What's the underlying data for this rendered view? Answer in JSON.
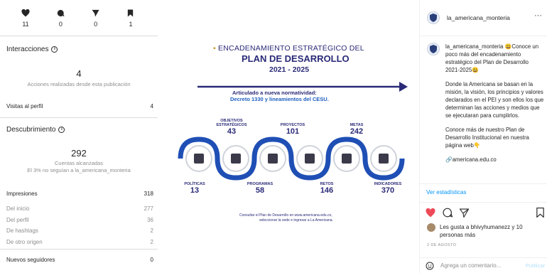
{
  "insights": {
    "stats": [
      {
        "icon": "heart-icon",
        "value": "11"
      },
      {
        "icon": "comment-icon",
        "value": "0"
      },
      {
        "icon": "share-icon",
        "value": "0"
      },
      {
        "icon": "bookmark-icon",
        "value": "1"
      }
    ],
    "interactions_title": "Interacciones",
    "interactions_count": "4",
    "interactions_desc": "Acciones realizadas desde esta publicación",
    "profile_visits_label": "Visitas al perfil",
    "profile_visits_value": "4",
    "discovery_title": "Descubrimiento",
    "reach_count": "292",
    "reach_label": "Cuentas alcanzadas",
    "reach_note": "El 3% no seguían a la_americana_monteria",
    "impressions_label": "Impresiones",
    "impressions_value": "318",
    "from_home_label": "Del inicio",
    "from_home_value": "277",
    "from_profile_label": "Del perfil",
    "from_profile_value": "36",
    "from_hashtags_label": "De hashtags",
    "from_hashtags_value": "2",
    "from_other_label": "De otro origen",
    "from_other_value": "2",
    "new_followers_label": "Nuevos seguidores",
    "new_followers_value": "0"
  },
  "image": {
    "title_line1": "ENCADENAMIENTO ESTRATÉGICO DEL",
    "title_line2": "PLAN DE DESARROLLO",
    "title_line3": "2021 - 2025",
    "subtitle_line1": "Articulado a nueva normatividad:",
    "subtitle_line2": "Decreto 1330 y lineamientos del CESU.",
    "top_items": [
      {
        "label": "OBJETIVOS ESTRATÉGICOS",
        "value": "43"
      },
      {
        "label": "PROYECTOS",
        "value": "101"
      },
      {
        "label": "METAS",
        "value": "242"
      }
    ],
    "bottom_items": [
      {
        "label": "POLÍTICAS",
        "value": "13"
      },
      {
        "label": "PROGRAMAS",
        "value": "58"
      },
      {
        "label": "RETOS",
        "value": "146"
      },
      {
        "label": "INDICADORES",
        "value": "370"
      }
    ],
    "footer_line1": "Consultar el Plan de Desarrollo en www.americana.edu.co,",
    "footer_line2": "seleccionar la sede e ingresar a La Americana.",
    "accent_color": "#2a2a78",
    "chain_color": "#1f4fb5"
  },
  "post": {
    "username": "la_americana_monteria",
    "more_label": "···",
    "caption_user": "la_americana_monteria",
    "caption_p1": " 😃Conoce un poco más del encadenamiento estratégico del Plan de Desarrollo 2021-2025😃",
    "caption_p2": "Donde la Americana se basan en la misión, la visión, los principios y valores declarados en el PEI y son ellos los que determinan las acciones y medios que se ejecutaran para cumplirlos.",
    "caption_p3": "Conoce más de nuestro Plan de Desarrollo Institucional en nuestra página web👇",
    "caption_p4": "🔗americana.edu.co",
    "view_stats": "Ver estadísticas",
    "likes_text": "Les gusta a bhivyhumanezz y 10 personas más",
    "date": "2 DE AGOSTO",
    "comment_placeholder": "Agrega un comentario...",
    "publish_label": "Publicar"
  }
}
